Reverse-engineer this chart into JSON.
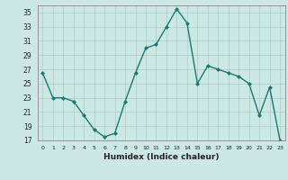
{
  "x": [
    0,
    1,
    2,
    3,
    4,
    5,
    6,
    7,
    8,
    9,
    10,
    11,
    12,
    13,
    14,
    15,
    16,
    17,
    18,
    19,
    20,
    21,
    22,
    23
  ],
  "y": [
    26.5,
    23.0,
    23.0,
    22.5,
    20.5,
    18.5,
    17.5,
    18.0,
    22.5,
    26.5,
    30.0,
    30.5,
    33.0,
    35.5,
    33.5,
    25.0,
    27.5,
    27.0,
    26.5,
    26.0,
    25.0,
    20.5,
    24.5,
    17.0
  ],
  "xlabel": "Humidex (Indice chaleur)",
  "ylim": [
    17,
    36
  ],
  "xlim": [
    -0.5,
    23.5
  ],
  "yticks": [
    17,
    19,
    21,
    23,
    25,
    27,
    29,
    31,
    33,
    35
  ],
  "xticks": [
    0,
    1,
    2,
    3,
    4,
    5,
    6,
    7,
    8,
    9,
    10,
    11,
    12,
    13,
    14,
    15,
    16,
    17,
    18,
    19,
    20,
    21,
    22,
    23
  ],
  "line_color": "#1a7a6e",
  "marker_color": "#1a7a6e",
  "bg_color": "#cce8e4",
  "grid_color": "#aaccca",
  "spine_color": "#888888"
}
